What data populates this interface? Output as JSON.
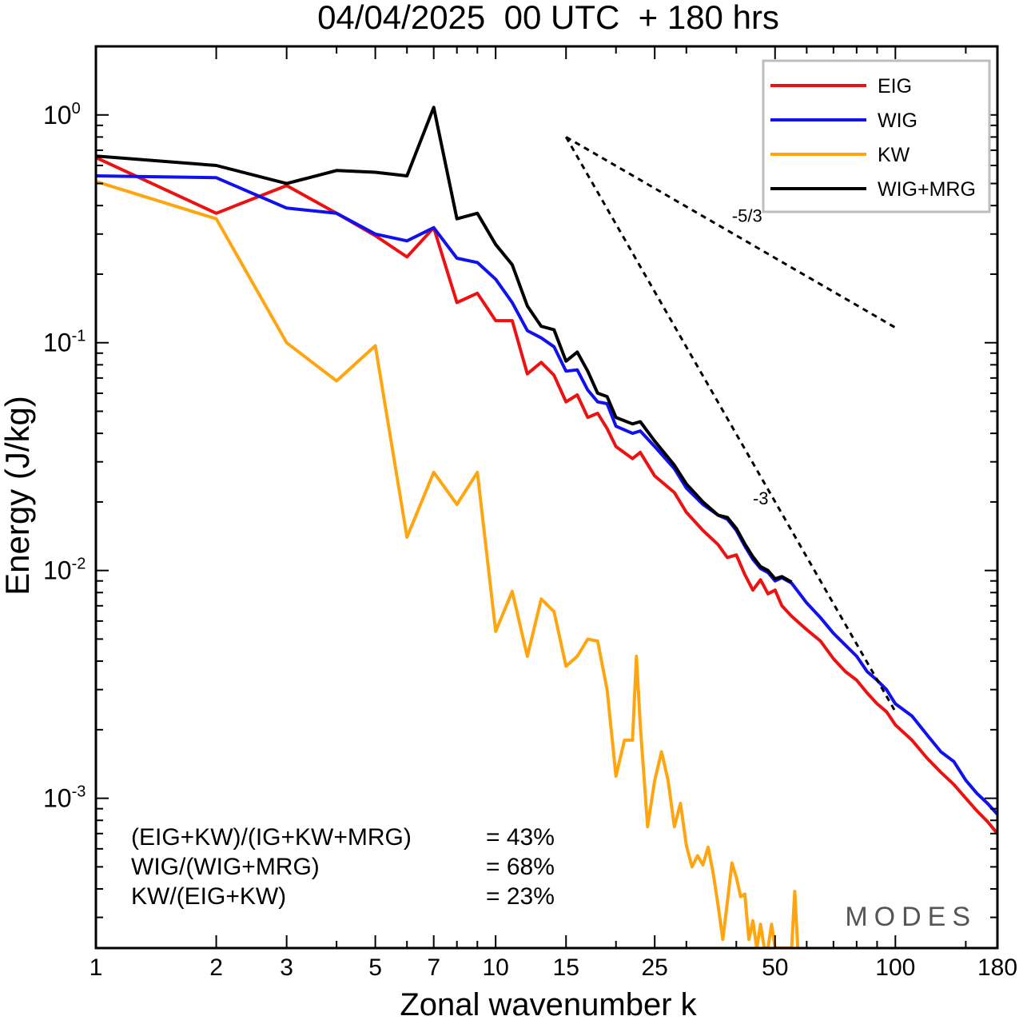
{
  "chart_data": {
    "type": "line",
    "title": "04/04/2025  00 UTC  + 180 hrs",
    "xlabel": "Zonal wavenumber k",
    "ylabel": "Energy (J/kg)",
    "x_scale": "log",
    "y_scale": "log",
    "xlim": [
      1,
      180
    ],
    "ylim": [
      0.00022,
      2.0
    ],
    "x_ticks": [
      1,
      2,
      3,
      5,
      7,
      10,
      15,
      25,
      50,
      100,
      180
    ],
    "y_ticks": [
      {
        "value": 1.0,
        "base": "10",
        "exp": "0"
      },
      {
        "value": 0.1,
        "base": "10",
        "exp": "-1"
      },
      {
        "value": 0.01,
        "base": "10",
        "exp": "-2"
      },
      {
        "value": 0.001,
        "base": "10",
        "exp": "-3"
      }
    ],
    "grid": false,
    "legend_position": "top-right",
    "series": [
      {
        "name": "EIG",
        "color": "#ee1111",
        "points": [
          [
            1,
            0.65
          ],
          [
            2,
            0.37
          ],
          [
            3,
            0.49
          ],
          [
            4,
            0.37
          ],
          [
            5,
            0.295
          ],
          [
            6,
            0.238
          ],
          [
            7,
            0.32
          ],
          [
            8,
            0.15
          ],
          [
            9,
            0.165
          ],
          [
            10,
            0.125
          ],
          [
            11,
            0.125
          ],
          [
            12,
            0.073
          ],
          [
            13,
            0.082
          ],
          [
            14,
            0.072
          ],
          [
            15,
            0.055
          ],
          [
            16,
            0.059
          ],
          [
            17,
            0.047
          ],
          [
            18,
            0.049
          ],
          [
            19,
            0.042
          ],
          [
            20,
            0.035
          ],
          [
            22,
            0.031
          ],
          [
            23,
            0.033
          ],
          [
            25,
            0.026
          ],
          [
            28,
            0.022
          ],
          [
            30,
            0.018
          ],
          [
            33,
            0.015
          ],
          [
            36,
            0.013
          ],
          [
            38,
            0.0114
          ],
          [
            40,
            0.0117
          ],
          [
            42,
            0.0096
          ],
          [
            44,
            0.0082
          ],
          [
            46,
            0.0091
          ],
          [
            48,
            0.0079
          ],
          [
            50,
            0.0082
          ],
          [
            52,
            0.007
          ],
          [
            55,
            0.0063
          ],
          [
            60,
            0.0055
          ],
          [
            65,
            0.0049
          ],
          [
            70,
            0.0041
          ],
          [
            75,
            0.0036
          ],
          [
            80,
            0.0033
          ],
          [
            85,
            0.0029
          ],
          [
            90,
            0.0026
          ],
          [
            95,
            0.0024
          ],
          [
            100,
            0.0021
          ],
          [
            110,
            0.0018
          ],
          [
            120,
            0.0015
          ],
          [
            130,
            0.0013
          ],
          [
            140,
            0.00115
          ],
          [
            150,
            0.001
          ],
          [
            160,
            0.00088
          ],
          [
            170,
            0.00079
          ],
          [
            180,
            0.0007
          ]
        ]
      },
      {
        "name": "WIG",
        "color": "#1111ee",
        "points": [
          [
            1,
            0.54
          ],
          [
            2,
            0.53
          ],
          [
            3,
            0.39
          ],
          [
            4,
            0.37
          ],
          [
            5,
            0.3
          ],
          [
            6,
            0.28
          ],
          [
            7,
            0.32
          ],
          [
            8,
            0.235
          ],
          [
            9,
            0.225
          ],
          [
            10,
            0.19
          ],
          [
            11,
            0.15
          ],
          [
            12,
            0.113
          ],
          [
            13,
            0.105
          ],
          [
            14,
            0.096
          ],
          [
            15,
            0.075
          ],
          [
            16,
            0.076
          ],
          [
            17,
            0.062
          ],
          [
            18,
            0.055
          ],
          [
            19,
            0.054
          ],
          [
            20,
            0.043
          ],
          [
            22,
            0.04
          ],
          [
            23,
            0.041
          ],
          [
            25,
            0.035
          ],
          [
            28,
            0.028
          ],
          [
            30,
            0.023
          ],
          [
            33,
            0.0195
          ],
          [
            36,
            0.0175
          ],
          [
            38,
            0.0168
          ],
          [
            40,
            0.015
          ],
          [
            42,
            0.0128
          ],
          [
            44,
            0.0112
          ],
          [
            46,
            0.0102
          ],
          [
            48,
            0.0098
          ],
          [
            50,
            0.009
          ],
          [
            52,
            0.0093
          ],
          [
            55,
            0.0088
          ],
          [
            60,
            0.0072
          ],
          [
            65,
            0.0062
          ],
          [
            70,
            0.0053
          ],
          [
            75,
            0.0047
          ],
          [
            80,
            0.0042
          ],
          [
            85,
            0.0036
          ],
          [
            90,
            0.0033
          ],
          [
            95,
            0.003
          ],
          [
            100,
            0.0026
          ],
          [
            110,
            0.0023
          ],
          [
            120,
            0.0019
          ],
          [
            130,
            0.0016
          ],
          [
            140,
            0.00145
          ],
          [
            150,
            0.0012
          ],
          [
            160,
            0.00105
          ],
          [
            170,
            0.00095
          ],
          [
            180,
            0.00085
          ]
        ]
      },
      {
        "name": "KW",
        "color": "#ffa510",
        "points": [
          [
            1,
            0.51
          ],
          [
            2,
            0.35
          ],
          [
            3,
            0.1
          ],
          [
            4,
            0.068
          ],
          [
            5,
            0.097
          ],
          [
            6,
            0.014
          ],
          [
            7,
            0.027
          ],
          [
            8,
            0.0195
          ],
          [
            9,
            0.027
          ],
          [
            10,
            0.0054
          ],
          [
            11,
            0.0081
          ],
          [
            12,
            0.0042
          ],
          [
            13,
            0.0075
          ],
          [
            14,
            0.0066
          ],
          [
            15,
            0.0038
          ],
          [
            16,
            0.0042
          ],
          [
            17,
            0.005
          ],
          [
            18,
            0.0049
          ],
          [
            19,
            0.003
          ],
          [
            20,
            0.00125
          ],
          [
            21,
            0.0018
          ],
          [
            22,
            0.0018
          ],
          [
            22.5,
            0.0042
          ],
          [
            23,
            0.0021
          ],
          [
            24,
            0.00075
          ],
          [
            25,
            0.0012
          ],
          [
            26,
            0.0016
          ],
          [
            27,
            0.0012
          ],
          [
            28,
            0.00075
          ],
          [
            29,
            0.00095
          ],
          [
            30,
            0.00062
          ],
          [
            31,
            0.0005
          ],
          [
            32,
            0.00056
          ],
          [
            33,
            0.00051
          ],
          [
            34,
            0.00061
          ],
          [
            35,
            0.00047
          ],
          [
            36,
            0.00034
          ],
          [
            37,
            0.00024
          ],
          [
            38,
            0.00035
          ],
          [
            39,
            0.00052
          ],
          [
            40,
            0.00045
          ],
          [
            41,
            0.00037
          ],
          [
            42,
            0.00038
          ],
          [
            43,
            0.00024
          ],
          [
            44,
            0.00029
          ],
          [
            45,
            0.00022
          ],
          [
            46,
            0.00028
          ],
          [
            47,
            0.00022
          ],
          [
            48,
            0.00022
          ],
          [
            49,
            0.00028
          ],
          [
            50,
            0.00022
          ],
          [
            52,
            0.00022
          ],
          [
            55,
            0.00022
          ],
          [
            56,
            0.00039
          ],
          [
            57,
            0.00022
          ]
        ]
      },
      {
        "name": "WIG+MRG",
        "color": "#000000",
        "points": [
          [
            1,
            0.66
          ],
          [
            2,
            0.6
          ],
          [
            3,
            0.5
          ],
          [
            4,
            0.57
          ],
          [
            5,
            0.56
          ],
          [
            6,
            0.54
          ],
          [
            7,
            1.08
          ],
          [
            8,
            0.35
          ],
          [
            9,
            0.37
          ],
          [
            10,
            0.27
          ],
          [
            11,
            0.22
          ],
          [
            12,
            0.145
          ],
          [
            13,
            0.118
          ],
          [
            14,
            0.114
          ],
          [
            15,
            0.083
          ],
          [
            16,
            0.091
          ],
          [
            17,
            0.075
          ],
          [
            18,
            0.06
          ],
          [
            19,
            0.058
          ],
          [
            20,
            0.047
          ],
          [
            22,
            0.044
          ],
          [
            23,
            0.045
          ],
          [
            25,
            0.037
          ],
          [
            28,
            0.029
          ],
          [
            30,
            0.024
          ],
          [
            33,
            0.02
          ],
          [
            36,
            0.0175
          ],
          [
            38,
            0.0171
          ],
          [
            40,
            0.0153
          ],
          [
            42,
            0.0131
          ],
          [
            44,
            0.0115
          ],
          [
            46,
            0.0104
          ],
          [
            48,
            0.01
          ],
          [
            50,
            0.0092
          ],
          [
            52,
            0.0094
          ],
          [
            55,
            0.0089
          ]
        ]
      }
    ],
    "reference_lines": [
      {
        "label": "-5/3",
        "points": [
          [
            15,
            0.8
          ],
          [
            100,
            0.1165
          ]
        ]
      },
      {
        "label": "-3",
        "points": [
          [
            15,
            0.8
          ],
          [
            100,
            0.0024
          ]
        ]
      }
    ],
    "annotations": [
      {
        "left": "(EIG+KW)/(IG+KW+MRG)",
        "right": "= 43%"
      },
      {
        "left": "WIG/(WIG+MRG)",
        "right": "= 68%"
      },
      {
        "left": "KW/(EIG+KW)",
        "right": "= 23%"
      }
    ],
    "watermark": "MODES"
  }
}
